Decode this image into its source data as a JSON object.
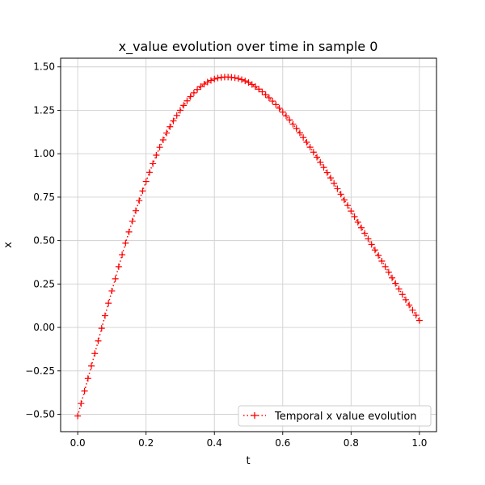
{
  "chart_data": {
    "type": "line",
    "title": "x_value evolution over time in sample 0",
    "xlabel": "t",
    "ylabel": "x",
    "xlim": [
      -0.05,
      1.05
    ],
    "ylim": [
      -0.6,
      1.55
    ],
    "xticks": [
      0.0,
      0.2,
      0.4,
      0.6,
      0.8,
      1.0
    ],
    "xtick_labels": [
      "0.0",
      "0.2",
      "0.4",
      "0.6",
      "0.8",
      "1.0"
    ],
    "yticks": [
      -0.5,
      -0.25,
      0.0,
      0.25,
      0.5,
      0.75,
      1.0,
      1.25,
      1.5
    ],
    "ytick_labels": [
      "−0.50",
      "−0.25",
      "0.00",
      "0.25",
      "0.50",
      "0.75",
      "1.00",
      "1.25",
      "1.50"
    ],
    "grid": true,
    "legend_position": "lower right",
    "series": [
      {
        "name": "Temporal x value evolution",
        "color": "#ff0000",
        "linestyle": "dotted",
        "marker": "plus",
        "x": [
          0.0,
          0.05,
          0.1,
          0.15,
          0.2,
          0.25,
          0.3,
          0.35,
          0.4,
          0.45,
          0.5,
          0.55,
          0.6,
          0.65,
          0.7,
          0.75,
          0.8,
          0.85,
          0.9,
          0.95,
          1.0
        ],
        "y": [
          -0.51,
          -0.15,
          0.21,
          0.55,
          0.84,
          1.08,
          1.25,
          1.37,
          1.43,
          1.44,
          1.41,
          1.34,
          1.24,
          1.12,
          0.98,
          0.83,
          0.67,
          0.51,
          0.35,
          0.19,
          0.04
        ]
      }
    ]
  }
}
